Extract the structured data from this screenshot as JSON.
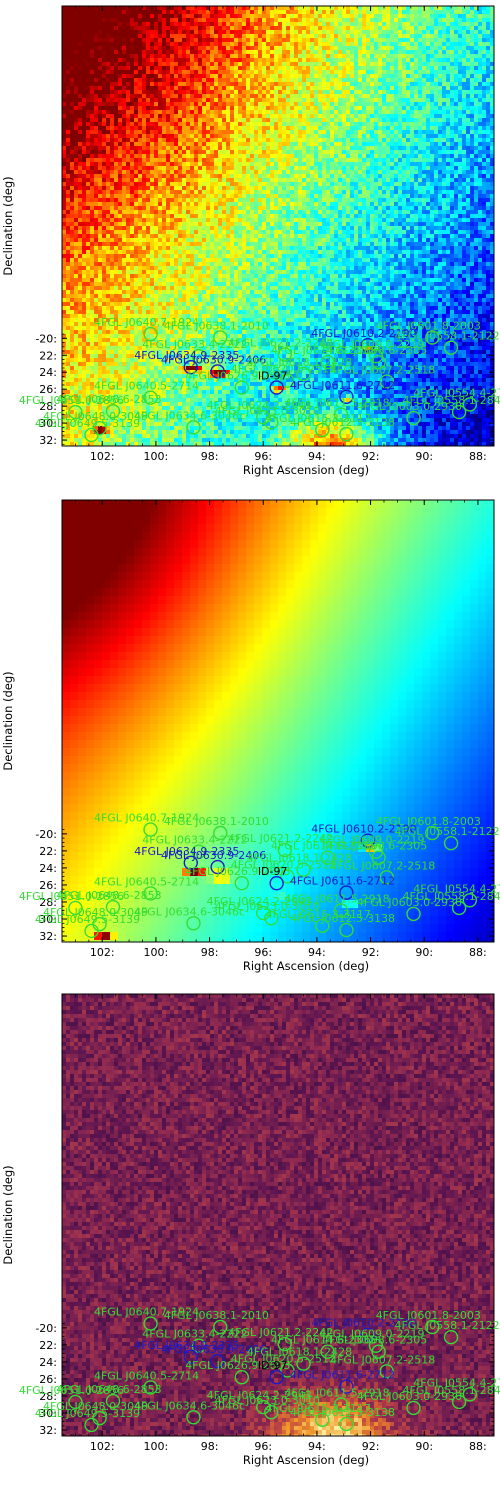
{
  "figure": {
    "title": ""
  },
  "colors": {
    "green": "#33dd33",
    "blue": "#1a1acc",
    "black": "#000000"
  },
  "chart_data": [
    {
      "type": "heatmap",
      "panel": "counts-map",
      "colormap": "jet",
      "xlabel": "Right Ascension (deg)",
      "ylabel": "Declination (deg)",
      "xlim": [
        103.5,
        87.4
      ],
      "ylim": [
        32.7,
        -19.2
      ],
      "xticks": [
        "102:",
        "100:",
        "98:",
        "96:",
        "94:",
        "92:",
        "90:",
        "88:"
      ],
      "yticks": [
        "-20:",
        "22:",
        "24:",
        "26:",
        "28:",
        "30:",
        "32:"
      ],
      "grid": false
    },
    {
      "type": "heatmap",
      "panel": "model-map",
      "colormap": "jet",
      "xlabel": "Right Ascension (deg)",
      "ylabel": "Declination (deg)",
      "xlim": [
        103.5,
        87.4
      ],
      "ylim": [
        32.7,
        -19.2
      ],
      "xticks": [
        "102:",
        "100:",
        "98:",
        "96:",
        "94:",
        "92:",
        "90:",
        "88:"
      ],
      "yticks": [
        "-20:",
        "22:",
        "24:",
        "26:",
        "28:",
        "30:",
        "32:"
      ],
      "grid": false
    },
    {
      "type": "heatmap",
      "panel": "residual-map",
      "colormap": "inferno",
      "xlabel": "Right Ascension (deg)",
      "ylabel": "Declination (deg)",
      "xlim": [
        103.5,
        87.4
      ],
      "ylim": [
        32.7,
        -19.2
      ],
      "xticks": [
        "102:",
        "100:",
        "98:",
        "96:",
        "94:",
        "92:",
        "90:",
        "88:"
      ],
      "yticks": [
        "-20:",
        "22:",
        "24:",
        "26:",
        "28:",
        "30:",
        "32:"
      ],
      "grid": false
    }
  ],
  "sources": [
    {
      "name": "4FGL J0640.7-1924",
      "ra": 100.2,
      "dec": -19.5,
      "color": "green"
    },
    {
      "name": "4FGL J0638.1-2010",
      "ra": 97.6,
      "dec": -19.9,
      "color": "green"
    },
    {
      "name": "4FGL J0601.8-2003",
      "ra": 89.7,
      "dec": -19.9,
      "color": "green"
    },
    {
      "name": "4FGL J0610.2-2100",
      "ra": 92.1,
      "dec": -20.8,
      "color": "blue"
    },
    {
      "name": "4FGL J0558.1-2122",
      "ra": 89.0,
      "dec": -21.1,
      "color": "green"
    },
    {
      "name": "4FGL J0633.4-2222",
      "ra": 98.4,
      "dec": -22.1,
      "color": "green"
    },
    {
      "name": "4FGL J0621.2-2242",
      "ra": 95.2,
      "dec": -21.9,
      "color": "green"
    },
    {
      "name": "4FGL J0609.0-2219",
      "ra": 91.8,
      "dec": -22.1,
      "color": "green"
    },
    {
      "name": "4FGL J0614.6-2335",
      "ra": 93.6,
      "dec": -22.8,
      "color": "green"
    },
    {
      "name": "4FGL J0608.6-2305",
      "ra": 91.7,
      "dec": -22.8,
      "color": "green"
    },
    {
      "name": "4FGL J0634.9-2335",
      "ra": 98.7,
      "dec": -23.4,
      "color": "blue"
    },
    {
      "name": "4FGL J0630.9-2406",
      "ra": 97.7,
      "dec": -23.9,
      "color": "blue"
    },
    {
      "name": "4FGL J0618.1-2428",
      "ra": 94.5,
      "dec": -24.2,
      "color": "green"
    },
    {
      "name": "4FGL J0620.5-2512",
      "ra": 95.1,
      "dec": -25.0,
      "color": "green"
    },
    {
      "name": "4FGL J0607.2-2518",
      "ra": 91.4,
      "dec": -25.1,
      "color": "green"
    },
    {
      "name": "4FGL J0626.9-2603",
      "ra": 96.8,
      "dec": -25.8,
      "color": "green"
    },
    {
      "name": "ID-97",
      "ra": 95.5,
      "dec": -25.8,
      "color": "blue"
    },
    {
      "name": "4FGL J0611.6-2712",
      "ra": 92.9,
      "dec": -26.9,
      "color": "blue"
    },
    {
      "name": "4FGL J0640.5-2714",
      "ra": 100.2,
      "dec": -27.0,
      "color": "green"
    },
    {
      "name": "4FGL J0554.4-2732",
      "ra": 88.3,
      "dec": -27.8,
      "color": "green"
    },
    {
      "name": "4FGL J0651.0-2856",
      "ra": 103.0,
      "dec": -28.7,
      "color": "green"
    },
    {
      "name": "4FGL J0648.6-2853",
      "ra": 101.6,
      "dec": -28.6,
      "color": "green"
    },
    {
      "name": "4FGL J0558.1-2843",
      "ra": 88.7,
      "dec": -28.7,
      "color": "green"
    },
    {
      "name": "4FGL J0611.5-2918",
      "ra": 93.1,
      "dec": -29.0,
      "color": "green"
    },
    {
      "name": "4FGL J0603.0-2930",
      "ra": 90.4,
      "dec": -29.4,
      "color": "green"
    },
    {
      "name": "4FGL J0624.2-2943",
      "ra": 96.0,
      "dec": -29.3,
      "color": "green"
    },
    {
      "name": "4FGL J0623.0-3010",
      "ra": 95.7,
      "dec": -29.9,
      "color": "green"
    },
    {
      "name": "4FGL J0648.0-3049",
      "ra": 102.1,
      "dec": -30.6,
      "color": "green"
    },
    {
      "name": "4FGL J0634.6-3046c",
      "ra": 98.6,
      "dec": -30.5,
      "color": "green"
    },
    {
      "name": "4FGL J0615.3-3117",
      "ra": 93.8,
      "dec": -30.8,
      "color": "green"
    },
    {
      "name": "4FGL J0649.5-3139",
      "ra": 102.4,
      "dec": -31.4,
      "color": "green"
    },
    {
      "name": "4FGL J0612.5-3138",
      "ra": 92.9,
      "dec": -31.3,
      "color": "green"
    }
  ]
}
